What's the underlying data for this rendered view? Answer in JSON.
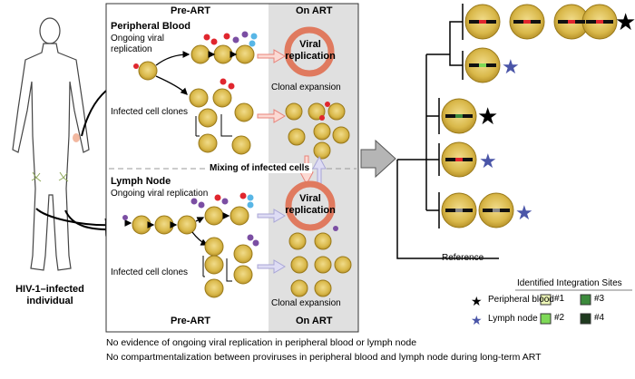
{
  "figure": {
    "left_panel": {
      "caption_line1": "HIV-1–infected",
      "caption_line2": "individual"
    },
    "center_panel": {
      "pre_art_top": "Pre-ART",
      "on_art_top": "On ART",
      "pre_art_bottom": "Pre-ART",
      "on_art_bottom": "On ART",
      "peripheral_blood_title": "Peripheral Blood",
      "pb_replication_line1": "Ongoing viral",
      "pb_replication_line2": "replication",
      "pb_clones": "Infected cell clones",
      "pb_viral_replication_line1": "Viral",
      "pb_viral_replication_line2": "replication",
      "pb_clonal_expansion": "Clonal expansion",
      "mixing": "Mixing of infected cells",
      "lymph_node_title": "Lymph Node",
      "ln_replication": "Ongoing viral replication",
      "ln_viral_replication_line1": "Viral",
      "ln_viral_replication_line2": "replication",
      "ln_clones": "Infected cell clones",
      "ln_clonal_expansion": "Clonal expansion"
    },
    "tree": {
      "reference": "Reference",
      "legend_title": "Identified Integration Sites",
      "legend_peripheral_blood": "Peripheral blood",
      "legend_lymph_node": "Lymph node",
      "site_1": "#1",
      "site_2": "#2",
      "site_3": "#3",
      "site_4": "#4"
    },
    "conclusions": [
      "No evidence of ongoing viral replication in peripheral blood or lymph node",
      "No compartmentalization between proviruses in peripheral blood and lymph node during long-term ART"
    ]
  },
  "colors": {
    "cell_fill": "#d9b84a",
    "cell_edge": "#9a7a1a",
    "on_art_bg": "#e0e0e0",
    "no_replication": "#e07a5f",
    "arrow_red": "#e8837a",
    "arrow_blue": "#a9a6d6",
    "peripheral_blood_star": "#000000",
    "lymph_node_star": "#4a55a8",
    "virus_red": "#e0262e",
    "virus_purple": "#7b4ea3",
    "virus_cyan": "#58b6e6",
    "site_1": "#eef7b8",
    "site_2": "#7ed957",
    "site_3": "#3c8a3c",
    "site_4": "#1f3a1f"
  }
}
